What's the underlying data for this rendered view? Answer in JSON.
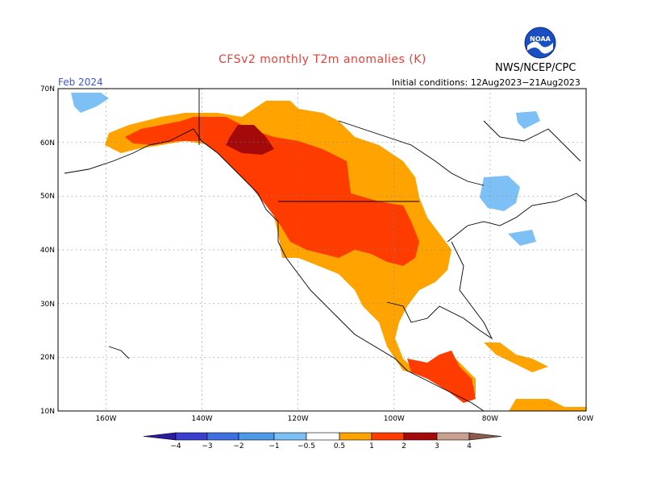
{
  "title": "CFSv2 monthly T2m anomalies (K)",
  "agency": "NWS/NCEP/CPC",
  "logo_text": "NOAA",
  "valid_month": "Feb 2024",
  "initial_conditions": "Initial conditions: 12Aug2023−21Aug2023",
  "lat_labels": [
    "70N",
    "60N",
    "50N",
    "40N",
    "30N",
    "20N",
    "10N"
  ],
  "lon_labels": [
    "160W",
    "140W",
    "120W",
    "100W",
    "80W",
    "60W"
  ],
  "colorbar": {
    "labels": [
      "−4",
      "−3",
      "−2",
      "−1",
      "−0.5",
      "0.5",
      "1",
      "2",
      "3",
      "4"
    ],
    "colors": [
      "#2a1a9e",
      "#3b3fd0",
      "#3f6fe0",
      "#4a9ae8",
      "#7cc0f5",
      "#ffffff",
      "#ffa300",
      "#ff3c00",
      "#a50a0a",
      "#c9a08f",
      "#8a5a4a"
    ]
  }
}
